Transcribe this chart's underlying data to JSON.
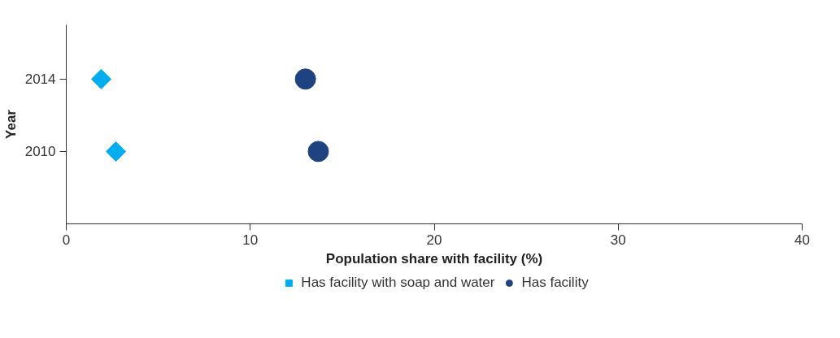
{
  "chart_data": {
    "type": "scatter",
    "xlabel": "Population share with facility (%)",
    "ylabel": "Year",
    "xlim": [
      0,
      40
    ],
    "xticks": [
      0,
      10,
      20,
      30,
      40
    ],
    "ylim": [
      2006,
      2017
    ],
    "yticks": [
      2010,
      2014
    ],
    "grid": false,
    "legend": "bottom",
    "series": [
      {
        "name": "Has facility with soap and water",
        "color": "#00aeef",
        "marker": "diamond",
        "x": [
          1.9,
          2.7
        ],
        "values": [
          2014,
          2010
        ]
      },
      {
        "name": "Has facility",
        "color": "#1f4280",
        "marker": "circle",
        "x": [
          13.0,
          13.7
        ],
        "values": [
          2014,
          2010
        ]
      }
    ]
  }
}
